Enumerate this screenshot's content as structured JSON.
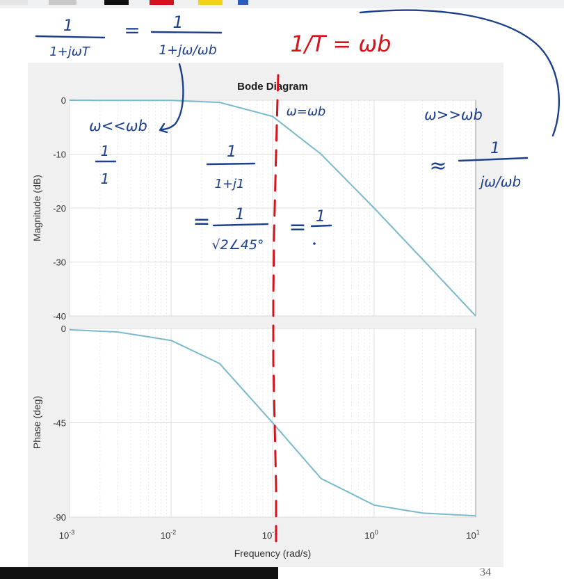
{
  "colors": {
    "curve": "#7ab8cc",
    "grid": "#dcdcdc",
    "axes_bg": "#ffffff",
    "figure_bg": "#f0f0f0",
    "ink_blue": "#1c3f8c",
    "ink_red": "#d4141c"
  },
  "page_number": "34",
  "chart_data": [
    {
      "type": "line",
      "title": "Bode Diagram",
      "xlabel": "",
      "ylabel": "Magnitude (dB)",
      "xscale": "log",
      "xlim": [
        0.001,
        10
      ],
      "ylim": [
        -40,
        0
      ],
      "yticks": [
        0,
        -10,
        -20,
        -30,
        -40
      ],
      "yticklabels": [
        "0",
        "-10",
        "-20",
        "-30",
        "-40"
      ],
      "grid": true,
      "x": [
        0.001,
        0.003,
        0.01,
        0.03,
        0.1,
        0.3,
        1,
        3,
        10
      ],
      "values": [
        0,
        -0.04,
        -0.04,
        -0.4,
        -3,
        -10,
        -20,
        -29.5,
        -40
      ]
    },
    {
      "type": "line",
      "title": "",
      "xlabel": "Frequency  (rad/s)",
      "ylabel": "Phase (deg)",
      "xscale": "log",
      "xlim": [
        0.001,
        10
      ],
      "ylim": [
        -90,
        0
      ],
      "yticks": [
        0,
        -45,
        -90
      ],
      "yticklabels": [
        "0",
        "-45",
        "-90"
      ],
      "xticks_base": [
        "10",
        "10",
        "10",
        "10",
        "10"
      ],
      "xticks_exp": [
        "-3",
        "-2",
        "-1",
        "0",
        "1"
      ],
      "grid": true,
      "x": [
        0.001,
        0.003,
        0.01,
        0.03,
        0.1,
        0.3,
        1,
        3,
        10
      ],
      "values": [
        -0.6,
        -1.7,
        -5.7,
        -16.7,
        -45,
        -71.6,
        -84.3,
        -88.1,
        -89.4
      ]
    }
  ],
  "annotations": {
    "eq_left_num": "1",
    "eq_left_den": "1+jωT",
    "eq_equals": "=",
    "eq_right_num": "1",
    "eq_right_den": "1+jω/ωb",
    "red_eq": "1/T = ωb",
    "w_less": "ω<<ωb",
    "w_equal": "ω=ωb",
    "w_greater": "ω>>ωb",
    "low_num": "1",
    "low_den": "1",
    "mid_num": "1",
    "mid_den": "1+j1",
    "mid2_eq": "=",
    "mid2_num": "1",
    "mid2_den": "√2∠45°",
    "mid3_eq": "=",
    "mid3_num": "1",
    "high_approx": "≈",
    "high_num": "1",
    "high_den": "jω/ωb"
  }
}
